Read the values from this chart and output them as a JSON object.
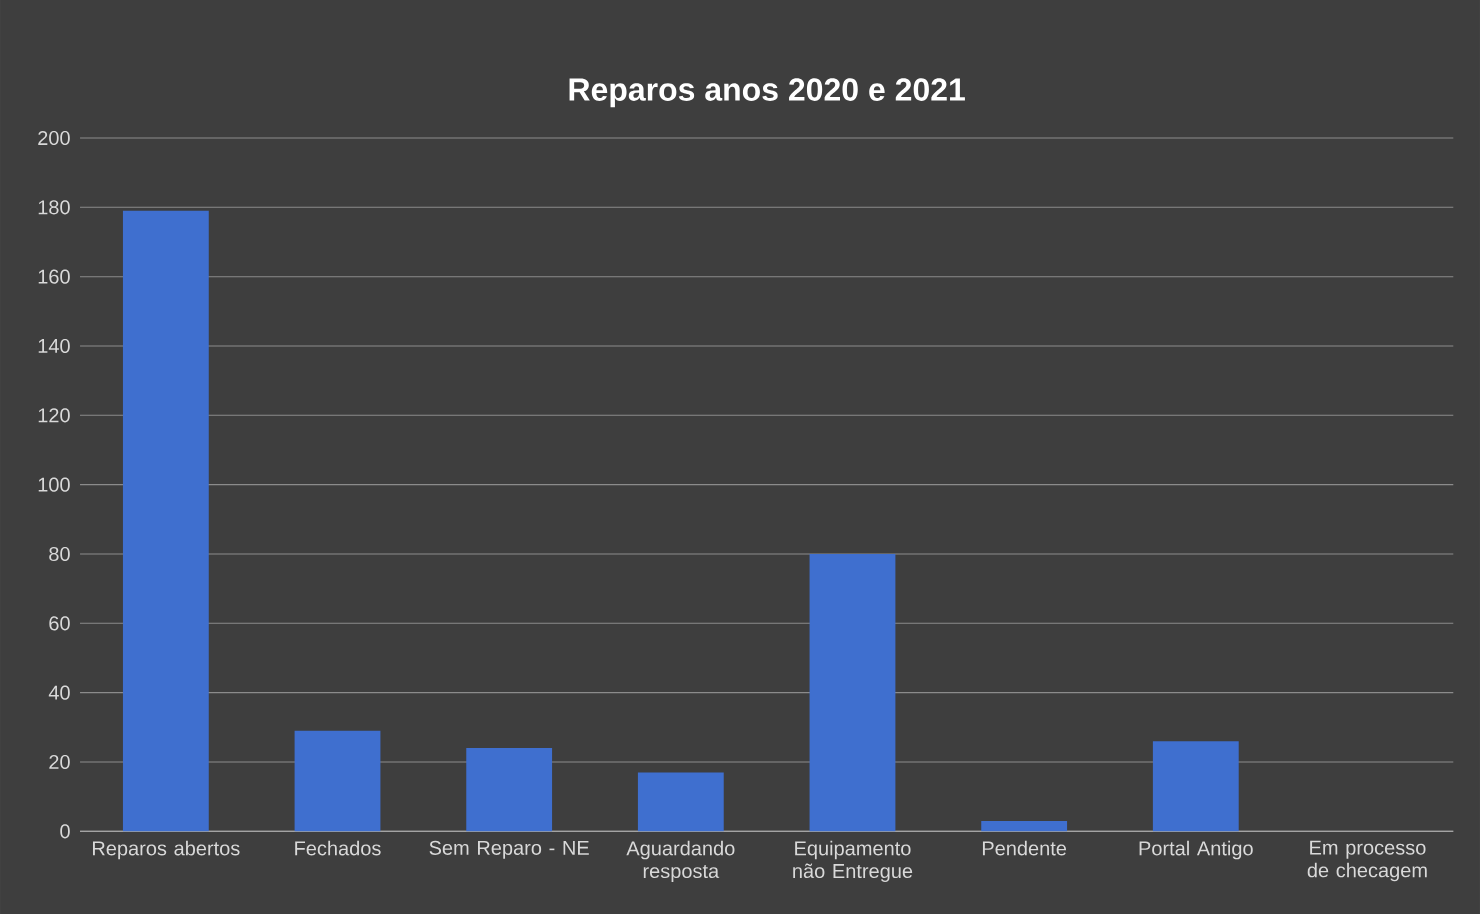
{
  "chart_data": {
    "type": "bar",
    "title": "Reparos anos 2020 e 2021",
    "categories": [
      "Reparos abertos",
      "Fechados",
      "Sem Reparo - NE",
      "Aguardando resposta",
      "Equipamento não Entregue",
      "Pendente",
      "Portal Antigo",
      "Em processo de checagem"
    ],
    "values": [
      179,
      29,
      24,
      17,
      80,
      3,
      26,
      0
    ],
    "color": "#3f6fcf",
    "ylim": [
      0,
      200
    ],
    "yticks": [
      0,
      20,
      40,
      60,
      80,
      100,
      120,
      140,
      160,
      180,
      200
    ],
    "grid": "y"
  }
}
